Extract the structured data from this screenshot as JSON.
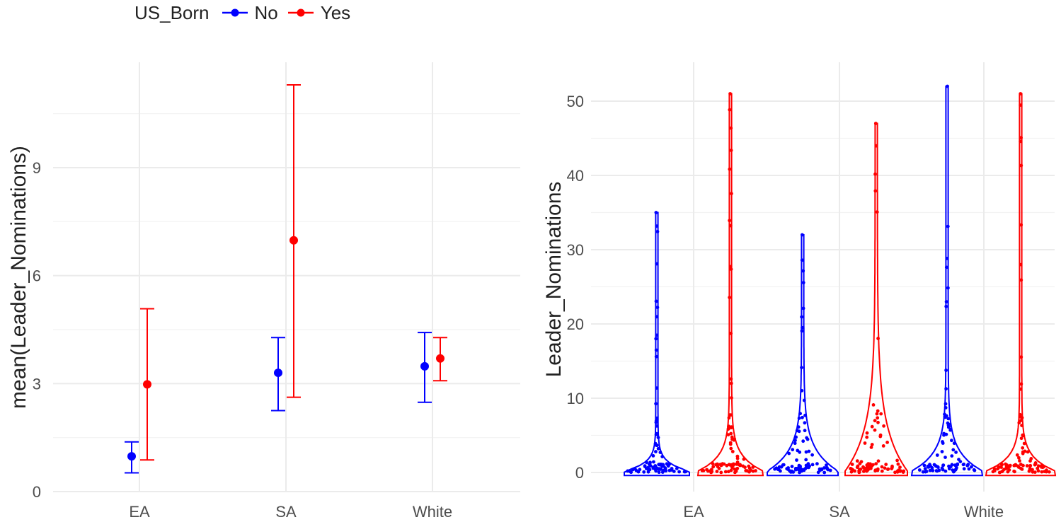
{
  "legend": {
    "title": "US_Born",
    "items": [
      {
        "label": "No",
        "color": "#0000ff"
      },
      {
        "label": "Yes",
        "color": "#ff0000"
      }
    ]
  },
  "chart_data": [
    {
      "type": "scatter",
      "subtype": "pointrange",
      "ylabel": "mean(Leader_Nominations)",
      "xlabel": "",
      "categories": [
        "EA",
        "SA",
        "White"
      ],
      "yticks": [
        0,
        3,
        6,
        9
      ],
      "ytick_labels": [
        "0",
        "3",
        "6",
        "9"
      ],
      "ylim": [
        0,
        11.5
      ],
      "grid": true,
      "series": [
        {
          "name": "No",
          "color": "#0000ff",
          "means": [
            0.98,
            3.3,
            3.48
          ],
          "lower": [
            0.52,
            2.25,
            2.48
          ],
          "upper": [
            1.38,
            4.28,
            4.42
          ]
        },
        {
          "name": "Yes",
          "color": "#ff0000",
          "means": [
            2.98,
            6.98,
            3.7
          ],
          "lower": [
            0.88,
            2.62,
            3.08
          ],
          "upper": [
            5.08,
            11.3,
            4.28
          ]
        }
      ]
    },
    {
      "type": "violin",
      "ylabel": "Leader_Nominations",
      "xlabel": "",
      "categories": [
        "EA",
        "SA",
        "White"
      ],
      "yticks": [
        0,
        10,
        20,
        30,
        40,
        50
      ],
      "ylim": [
        -1.5,
        55
      ],
      "grid": true,
      "series": [
        {
          "name": "No",
          "color": "#0000ff",
          "max": [
            35,
            32,
            52
          ]
        },
        {
          "name": "Yes",
          "color": "#ff0000",
          "max": [
            51,
            47,
            51
          ]
        }
      ]
    }
  ]
}
